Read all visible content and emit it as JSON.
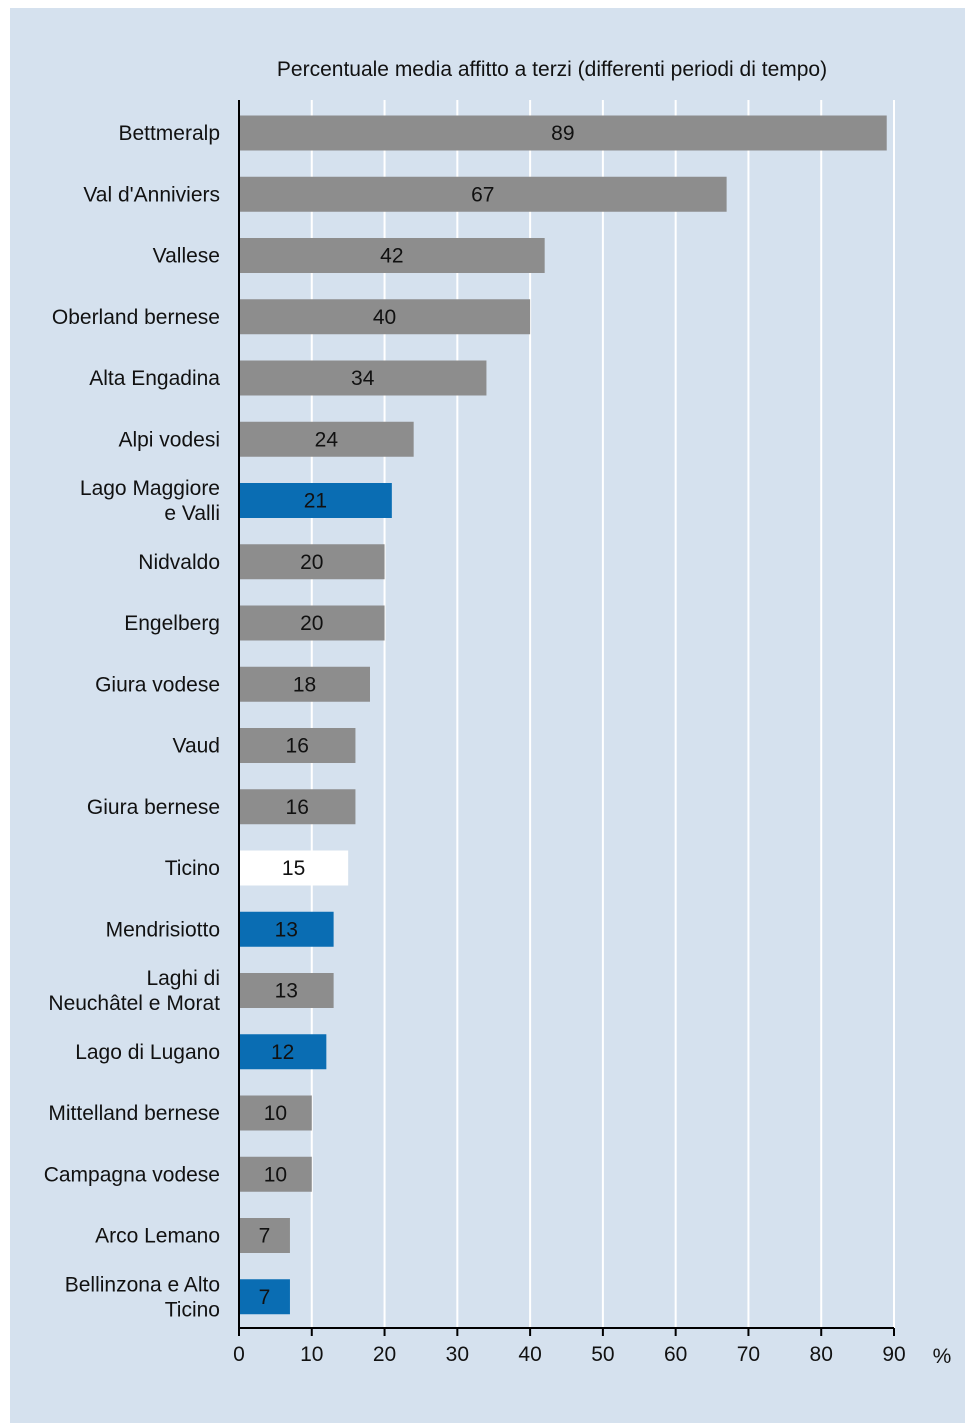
{
  "chart_data": {
    "type": "bar",
    "orientation": "horizontal",
    "title": "Percentuale media affitto a terzi (differenti periodi di tempo)",
    "xlabel": "",
    "ylabel": "",
    "unit": "%",
    "xlim": [
      0,
      90
    ],
    "x_ticks": [
      "0",
      "10",
      "20",
      "30",
      "40",
      "50",
      "60",
      "70",
      "80",
      "90"
    ],
    "grid": "vertical",
    "categories": [
      [
        "Bettmeralp"
      ],
      [
        "Val d'Anniviers"
      ],
      [
        "Vallese"
      ],
      [
        "Oberland bernese"
      ],
      [
        "Alta Engadina"
      ],
      [
        "Alpi vodesi"
      ],
      [
        "Lago Maggiore",
        "e Valli"
      ],
      [
        "Nidvaldo"
      ],
      [
        "Engelberg"
      ],
      [
        "Giura vodese"
      ],
      [
        "Vaud"
      ],
      [
        "Giura bernese"
      ],
      [
        "Ticino"
      ],
      [
        "Mendrisiotto"
      ],
      [
        "Laghi di",
        "Neuchâtel e Morat"
      ],
      [
        "Lago di Lugano"
      ],
      [
        "Mittelland bernese"
      ],
      [
        "Campagna vodese"
      ],
      [
        "Arco Lemano"
      ],
      [
        "Bellinzona e Alto",
        "Ticino"
      ]
    ],
    "values": [
      89,
      67,
      42,
      40,
      34,
      24,
      21,
      20,
      20,
      18,
      16,
      16,
      15,
      13,
      13,
      12,
      10,
      10,
      7,
      7
    ],
    "bar_colors": [
      "#8d8d8d",
      "#8d8d8d",
      "#8d8d8d",
      "#8d8d8d",
      "#8d8d8d",
      "#8d8d8d",
      "#0a6db3",
      "#8d8d8d",
      "#8d8d8d",
      "#8d8d8d",
      "#8d8d8d",
      "#8d8d8d",
      "#ffffff",
      "#0a6db3",
      "#8d8d8d",
      "#0a6db3",
      "#8d8d8d",
      "#8d8d8d",
      "#8d8d8d",
      "#0a6db3"
    ],
    "colors": {
      "background": "#d5e1ee",
      "grid": "#ffffff",
      "axis": "#000000"
    }
  }
}
